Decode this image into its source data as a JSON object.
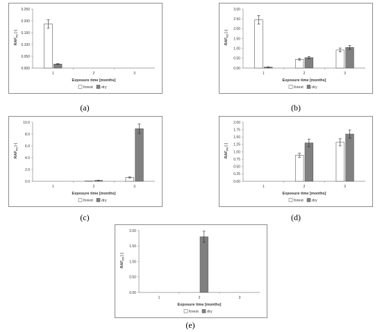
{
  "legend": {
    "items": [
      {
        "label": "forest",
        "color": "#ffffff"
      },
      {
        "label": "dry",
        "color": "#808080"
      }
    ]
  },
  "chart_data": [
    {
      "id": "a",
      "caption": "(a)",
      "type": "bar",
      "categories": [
        "1",
        "2",
        "3"
      ],
      "series": [
        {
          "name": "forest",
          "values": [
            0.187,
            0,
            0
          ],
          "errors": [
            0.018,
            0,
            0
          ]
        },
        {
          "name": "dry",
          "values": [
            0.017,
            0,
            0
          ],
          "errors": [
            0.002,
            0,
            0
          ]
        }
      ],
      "xlabel": "Exposure time [months]",
      "ylabel": "RAF",
      "ylabel_sub": "P1",
      "ylabel_suffix": " [-]",
      "ylim": [
        0,
        0.25
      ],
      "yticks": [
        "0.000",
        "0.050",
        "0.100",
        "0.150",
        "0.200",
        "0.250"
      ],
      "grid": false,
      "legend_position": "bottom"
    },
    {
      "id": "b",
      "caption": "(b)",
      "type": "bar",
      "categories": [
        "1",
        "2",
        "3"
      ],
      "series": [
        {
          "name": "forest",
          "values": [
            2.45,
            0.44,
            0.92
          ],
          "errors": [
            0.22,
            0.05,
            0.1
          ]
        },
        {
          "name": "dry",
          "values": [
            0.05,
            0.53,
            1.05
          ],
          "errors": [
            0.01,
            0.06,
            0.1
          ]
        }
      ],
      "xlabel": "Exposure time [months]",
      "ylabel": "RAF",
      "ylabel_sub": "P2",
      "ylabel_suffix": " [-]",
      "ylim": [
        0,
        3
      ],
      "yticks": [
        "0.00",
        "0.50",
        "1.00",
        "1.50",
        "2.00",
        "2.50",
        "3.00"
      ],
      "grid": false,
      "legend_position": "bottom"
    },
    {
      "id": "c",
      "caption": "(c)",
      "type": "bar",
      "categories": [
        "1",
        "2",
        "3"
      ],
      "series": [
        {
          "name": "forest",
          "values": [
            0,
            0.05,
            0.65
          ],
          "errors": [
            0,
            0,
            0.08
          ]
        },
        {
          "name": "dry",
          "values": [
            0,
            0.15,
            8.9
          ],
          "errors": [
            0,
            0.02,
            0.8
          ]
        }
      ],
      "xlabel": "Exposure time [months]",
      "ylabel": "RAF",
      "ylabel_sub": "P3",
      "ylabel_suffix": " [-]",
      "ylim": [
        0,
        10
      ],
      "yticks": [
        "0.0",
        "2.0",
        "4.0",
        "6.0",
        "8.0",
        "10.0"
      ],
      "grid": false,
      "legend_position": "bottom"
    },
    {
      "id": "d",
      "caption": "(d)",
      "type": "bar",
      "categories": [
        "1",
        "2",
        "3"
      ],
      "series": [
        {
          "name": "forest",
          "values": [
            0,
            0.88,
            1.32
          ],
          "errors": [
            0,
            0.07,
            0.12
          ]
        },
        {
          "name": "dry",
          "values": [
            0,
            1.3,
            1.6
          ],
          "errors": [
            0,
            0.13,
            0.14
          ]
        }
      ],
      "xlabel": "Exposure time [months]",
      "ylabel": "RAF",
      "ylabel_sub": "P4",
      "ylabel_suffix": " [-]",
      "ylim": [
        0,
        2
      ],
      "yticks": [
        "0.00",
        "0.25",
        "0.50",
        "0.75",
        "1.00",
        "1.25",
        "1.50",
        "1.75",
        "2.00"
      ],
      "grid": false,
      "legend_position": "bottom"
    },
    {
      "id": "e",
      "caption": "(e)",
      "type": "bar",
      "categories": [
        "1",
        "2",
        "3"
      ],
      "series": [
        {
          "name": "forest",
          "values": [
            0,
            0,
            0
          ],
          "errors": [
            0,
            0,
            0
          ]
        },
        {
          "name": "dry",
          "values": [
            0,
            1.8,
            0
          ],
          "errors": [
            0,
            0.18,
            0
          ]
        }
      ],
      "xlabel": "Exposure time [months]",
      "ylabel": "RAF",
      "ylabel_sub": "P5",
      "ylabel_suffix": " [-]",
      "ylim": [
        0,
        2
      ],
      "yticks": [
        "0.00",
        "0.50",
        "1.00",
        "1.50",
        "2.00"
      ],
      "grid": false,
      "legend_position": "bottom"
    }
  ]
}
